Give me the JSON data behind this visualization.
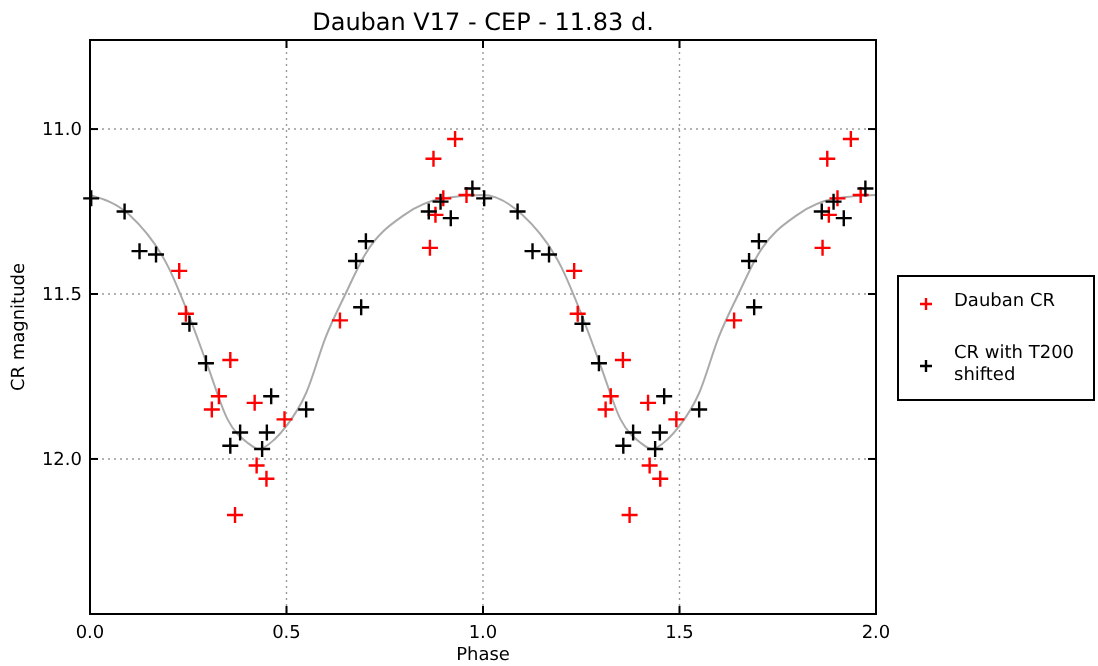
{
  "chart_data": {
    "type": "scatter",
    "title": "Dauban V17 - CEP - 11.83 d.",
    "xlabel": "Phase",
    "ylabel": "CR magnitude",
    "xlim": [
      0,
      2
    ],
    "xticks": [
      {
        "value": 0,
        "label": "0.0"
      },
      0.5,
      {
        "value": 1,
        "label": "1.0"
      },
      1.5,
      {
        "value": 2,
        "label": "2.0"
      }
    ],
    "ylim": [
      12.47,
      10.73
    ],
    "yticks": [
      {
        "value": 11,
        "label": "11.0"
      },
      11.5,
      {
        "value": 12,
        "label": "12.0"
      }
    ],
    "grid": true,
    "legend": "right",
    "series": [
      {
        "type": "line",
        "color": "#aaaaaa",
        "marker": "none",
        "x": [
          0,
          0.1,
          0.2,
          0.25,
          0.3,
          0.35,
          0.4,
          0.43,
          0.47,
          0.5,
          0.55,
          0.6,
          0.65,
          0.7,
          0.8,
          0.9,
          1,
          1.1,
          1.2,
          1.25,
          1.3,
          1.35,
          1.4,
          1.43,
          1.47,
          1.5,
          1.55,
          1.6,
          1.65,
          1.7,
          1.8,
          1.9,
          2
        ],
        "values": [
          11.2,
          11.26,
          11.42,
          11.56,
          11.72,
          11.88,
          11.95,
          11.97,
          11.94,
          11.9,
          11.8,
          11.63,
          11.5,
          11.38,
          11.26,
          11.21,
          11.2,
          11.26,
          11.42,
          11.56,
          11.72,
          11.88,
          11.95,
          11.97,
          11.94,
          11.9,
          11.8,
          11.63,
          11.5,
          11.38,
          11.26,
          11.21,
          11.2
        ]
      },
      {
        "name": "Dauban CR",
        "color": "#ff0000",
        "marker": "cross",
        "x": [
          0.227,
          0.244,
          0.357,
          0.328,
          0.31,
          0.419,
          0.424,
          0.449,
          0.369,
          0.495,
          0.636,
          0.865,
          0.874,
          0.879,
          0.899,
          0.929,
          0.958,
          1.232,
          1.241,
          1.356,
          1.325,
          1.312,
          1.42,
          1.424,
          1.451,
          1.373,
          1.492,
          1.639,
          1.864,
          1.876,
          1.88,
          1.902,
          1.936,
          1.961
        ],
        "values": [
          11.43,
          11.56,
          11.7,
          11.81,
          11.85,
          11.83,
          12.02,
          12.06,
          12.17,
          11.88,
          11.58,
          11.36,
          11.09,
          11.26,
          11.21,
          11.03,
          11.2,
          11.43,
          11.56,
          11.7,
          11.81,
          11.85,
          11.83,
          12.02,
          12.06,
          12.17,
          11.88,
          11.58,
          11.36,
          11.09,
          11.26,
          11.21,
          11.03,
          11.2
        ]
      },
      {
        "name": "CR with T200 shifted",
        "color": "#000000",
        "marker": "cross",
        "x": [
          0.003,
          0.088,
          0.126,
          0.168,
          0.253,
          0.295,
          0.357,
          0.382,
          0.438,
          0.45,
          0.461,
          0.55,
          0.677,
          0.69,
          0.702,
          0.862,
          0.892,
          0.918,
          0.973,
          1.003,
          1.088,
          1.126,
          1.168,
          1.253,
          1.295,
          1.357,
          1.382,
          1.438,
          1.45,
          1.461,
          1.55,
          1.677,
          1.69,
          1.702,
          1.862,
          1.892,
          1.918,
          1.973
        ],
        "values": [
          11.21,
          11.25,
          11.37,
          11.38,
          11.59,
          11.71,
          11.96,
          11.92,
          11.97,
          11.92,
          11.81,
          11.85,
          11.4,
          11.54,
          11.34,
          11.25,
          11.22,
          11.27,
          11.18,
          11.21,
          11.25,
          11.37,
          11.38,
          11.59,
          11.71,
          11.96,
          11.92,
          11.97,
          11.92,
          11.81,
          11.85,
          11.4,
          11.54,
          11.34,
          11.25,
          11.22,
          11.27,
          11.18
        ]
      }
    ]
  }
}
